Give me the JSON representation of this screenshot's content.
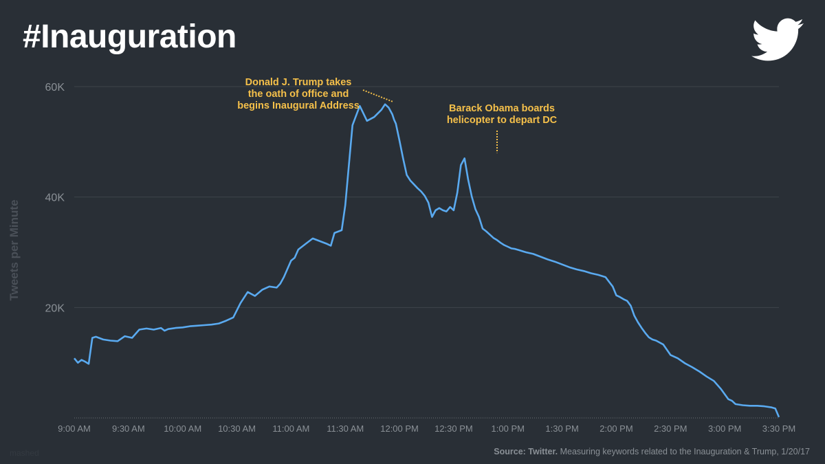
{
  "header": {
    "title": "#Inauguration",
    "logo_icon": "twitter-bird-icon"
  },
  "footer": {
    "source_label": "Source: Twitter.",
    "source_text": " Measuring keywords related to the Inauguration & Trump, 1/20/17",
    "watermark": "mashed"
  },
  "colors": {
    "background": "#292f36",
    "line": "#5aaaf0",
    "annotation": "#f5c04a",
    "grid": "#3e444b",
    "bird": "#ffffff"
  },
  "chart_data": {
    "type": "line",
    "title": "#Inauguration",
    "xlabel": "",
    "ylabel": "Tweets per Minute",
    "ylim": [
      0,
      60000
    ],
    "yticks": [
      20000,
      40000,
      60000
    ],
    "ytick_labels": [
      "20K",
      "40K",
      "60K"
    ],
    "xlim": [
      540,
      930
    ],
    "xticks": [
      540,
      570,
      600,
      630,
      660,
      690,
      720,
      750,
      780,
      810,
      840,
      870,
      900,
      930
    ],
    "xtick_labels": [
      "9:00 AM",
      "9:30 AM",
      "10:00 AM",
      "10:30 AM",
      "11:00 AM",
      "11:30 AM",
      "12:00 PM",
      "12:30 PM",
      "1:00 PM",
      "1:30 PM",
      "2:00 PM",
      "2:30 PM",
      "3:00 PM",
      "3:30 PM"
    ],
    "grid": true,
    "x_unit": "minutes since midnight",
    "series": [
      {
        "name": "Tweets per Minute",
        "x": [
          540,
          542,
          544,
          546,
          548,
          550,
          552,
          556,
          560,
          564,
          568,
          572,
          576,
          580,
          584,
          588,
          590,
          592,
          596,
          600,
          604,
          608,
          612,
          616,
          620,
          624,
          628,
          632,
          636,
          640,
          644,
          648,
          652,
          654,
          656,
          660,
          662,
          664,
          668,
          672,
          676,
          680,
          682,
          684,
          688,
          690,
          694,
          698,
          702,
          706,
          710,
          712,
          714,
          716,
          717,
          718,
          720,
          722,
          724,
          726,
          728,
          730,
          732,
          734,
          736,
          738,
          740,
          742,
          744,
          746,
          748,
          750,
          752,
          754,
          756,
          758,
          760,
          762,
          764,
          766,
          768,
          770,
          772,
          774,
          776,
          778,
          780,
          782,
          784,
          786,
          790,
          794,
          798,
          802,
          806,
          810,
          814,
          818,
          822,
          826,
          830,
          834,
          838,
          840,
          842,
          844,
          846,
          848,
          850,
          852,
          854,
          856,
          858,
          860,
          862,
          866,
          870,
          874,
          878,
          882,
          886,
          890,
          894,
          898,
          902,
          904,
          906,
          910,
          914,
          918,
          922,
          926,
          928,
          930
        ],
        "values": [
          10800,
          10000,
          10500,
          10200,
          9800,
          14500,
          14700,
          14200,
          14000,
          13900,
          14800,
          14500,
          16000,
          16200,
          16000,
          16300,
          15800,
          16100,
          16300,
          16400,
          16600,
          16700,
          16800,
          16900,
          17100,
          17600,
          18200,
          20800,
          22800,
          22100,
          23200,
          23800,
          23600,
          24300,
          25500,
          28500,
          29000,
          30500,
          31500,
          32500,
          32000,
          31500,
          31200,
          33500,
          34000,
          38500,
          53000,
          56500,
          53800,
          54500,
          55800,
          56800,
          56200,
          55000,
          54000,
          53300,
          50200,
          47000,
          44000,
          43000,
          42300,
          41600,
          41000,
          40200,
          39000,
          36400,
          37600,
          38000,
          37600,
          37400,
          38200,
          37600,
          40800,
          45800,
          47000,
          43200,
          40100,
          37800,
          36400,
          34300,
          33800,
          33200,
          32600,
          32200,
          31700,
          31300,
          31000,
          30700,
          30600,
          30400,
          30000,
          29700,
          29200,
          28700,
          28300,
          27800,
          27300,
          26900,
          26600,
          26200,
          25900,
          25500,
          23800,
          22200,
          21900,
          21500,
          21200,
          20300,
          18500,
          17300,
          16300,
          15400,
          14600,
          14200,
          14000,
          13300,
          11400,
          10800,
          9900,
          9200,
          8400,
          7500,
          6700,
          5200,
          3400,
          3100,
          2500,
          2300,
          2200,
          2200,
          2100,
          1900,
          1700,
          150
        ]
      }
    ],
    "annotations": [
      {
        "lines": [
          "Donald J. Trump takes",
          "the oath of office and",
          "begins Inaugural Address"
        ],
        "x": 718,
        "y": 57000
      },
      {
        "lines": [
          "Barack Obama boards",
          "helicopter to depart DC"
        ],
        "x": 774,
        "y": 47000
      }
    ]
  }
}
